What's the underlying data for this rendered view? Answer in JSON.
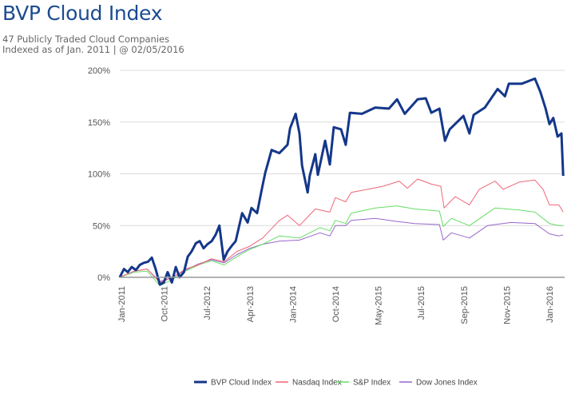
{
  "header": {
    "title": "BVP Cloud Index",
    "subtitle_line1": "47 Publicly Traded Cloud Companies",
    "subtitle_line2": "Indexed as of Jan. 2011 | @ 02/05/2016"
  },
  "chart_data": {
    "type": "line",
    "title": "",
    "xlabel": "",
    "ylabel": "",
    "ylim": [
      -20,
      200
    ],
    "y_ticks": [
      0,
      50,
      100,
      150,
      200
    ],
    "y_tick_labels": [
      "0%",
      "50%",
      "100%",
      "150%",
      "200%"
    ],
    "x_tick_labels": [
      "Jan-2011",
      "Oct-2011",
      "Jul-2012",
      "Apr-2013",
      "Jan-2014",
      "Oct-2014",
      "May-2015",
      "Jul-2015",
      "Sep-2015",
      "Nov-2015",
      "Jan-2016"
    ],
    "x_unit_note": "x given in tick-label positions (0 = Jan-2011 ... 10 = Jan-2016)",
    "grid": true,
    "legend": "bottom",
    "series": [
      {
        "name": "BVP Cloud Index",
        "color": "#14378a",
        "points": [
          [
            -0.04,
            0
          ],
          [
            0.06,
            8
          ],
          [
            0.15,
            5
          ],
          [
            0.24,
            10
          ],
          [
            0.34,
            7
          ],
          [
            0.43,
            12
          ],
          [
            0.52,
            14
          ],
          [
            0.62,
            15
          ],
          [
            0.71,
            19
          ],
          [
            0.8,
            8
          ],
          [
            0.9,
            -7
          ],
          [
            0.99,
            -5
          ],
          [
            1.08,
            5
          ],
          [
            1.18,
            -5
          ],
          [
            1.27,
            10
          ],
          [
            1.36,
            0
          ],
          [
            1.46,
            5
          ],
          [
            1.55,
            20
          ],
          [
            1.64,
            25
          ],
          [
            1.74,
            33
          ],
          [
            1.83,
            35
          ],
          [
            1.92,
            28
          ],
          [
            2.01,
            32
          ],
          [
            2.11,
            35
          ],
          [
            2.2,
            41
          ],
          [
            2.29,
            50
          ],
          [
            2.39,
            17
          ],
          [
            2.48,
            25
          ],
          [
            2.57,
            30
          ],
          [
            2.67,
            35
          ],
          [
            2.82,
            62
          ],
          [
            2.95,
            53
          ],
          [
            3.04,
            67
          ],
          [
            3.17,
            62
          ],
          [
            3.28,
            85
          ],
          [
            3.36,
            101
          ],
          [
            3.51,
            123
          ],
          [
            3.69,
            120
          ],
          [
            3.88,
            128
          ],
          [
            3.94,
            144
          ],
          [
            4.07,
            158
          ],
          [
            4.16,
            139
          ],
          [
            4.22,
            108
          ],
          [
            4.35,
            82
          ],
          [
            4.4,
            98
          ],
          [
            4.53,
            119
          ],
          [
            4.59,
            99
          ],
          [
            4.76,
            132
          ],
          [
            4.87,
            109
          ],
          [
            4.96,
            145
          ],
          [
            5.13,
            143
          ],
          [
            5.24,
            128
          ],
          [
            5.34,
            159
          ],
          [
            5.62,
            158
          ],
          [
            5.93,
            164
          ],
          [
            6.25,
            163
          ],
          [
            6.44,
            172
          ],
          [
            6.62,
            158
          ],
          [
            6.92,
            172
          ],
          [
            7.11,
            173
          ],
          [
            7.24,
            159
          ],
          [
            7.43,
            163
          ],
          [
            7.56,
            132
          ],
          [
            7.67,
            143
          ],
          [
            7.99,
            156
          ],
          [
            8.13,
            139
          ],
          [
            8.23,
            157
          ],
          [
            8.49,
            164
          ],
          [
            8.79,
            182
          ],
          [
            8.96,
            175
          ],
          [
            9.05,
            187
          ],
          [
            9.35,
            187
          ],
          [
            9.66,
            192
          ],
          [
            9.79,
            179
          ],
          [
            9.91,
            163
          ],
          [
            10.0,
            148
          ],
          [
            10.09,
            154
          ],
          [
            10.19,
            136
          ],
          [
            10.28,
            139
          ],
          [
            10.32,
            98
          ]
        ]
      },
      {
        "name": "Nasdaq Index",
        "color": "#ee6677",
        "points": [
          [
            -0.04,
            0
          ],
          [
            0.3,
            6
          ],
          [
            0.6,
            8
          ],
          [
            0.9,
            -5
          ],
          [
            1.2,
            0
          ],
          [
            1.5,
            8
          ],
          [
            1.8,
            12
          ],
          [
            2.1,
            18
          ],
          [
            2.4,
            15
          ],
          [
            2.7,
            25
          ],
          [
            3.0,
            30
          ],
          [
            3.3,
            38
          ],
          [
            3.69,
            55
          ],
          [
            3.88,
            60
          ],
          [
            4.16,
            50
          ],
          [
            4.53,
            66
          ],
          [
            4.87,
            63
          ],
          [
            5.0,
            77
          ],
          [
            5.24,
            73
          ],
          [
            5.37,
            82
          ],
          [
            5.75,
            85
          ],
          [
            6.12,
            88
          ],
          [
            6.49,
            93
          ],
          [
            6.68,
            86
          ],
          [
            6.92,
            95
          ],
          [
            7.24,
            90
          ],
          [
            7.46,
            88
          ],
          [
            7.54,
            67
          ],
          [
            7.8,
            78
          ],
          [
            8.13,
            70
          ],
          [
            8.36,
            85
          ],
          [
            8.73,
            93
          ],
          [
            8.92,
            85
          ],
          [
            9.29,
            92
          ],
          [
            9.66,
            94
          ],
          [
            9.85,
            85
          ],
          [
            10.0,
            70
          ],
          [
            10.22,
            70
          ],
          [
            10.32,
            63
          ]
        ]
      },
      {
        "name": "S&P Index",
        "color": "#66dd66",
        "points": [
          [
            -0.04,
            0
          ],
          [
            0.3,
            5
          ],
          [
            0.6,
            6
          ],
          [
            0.9,
            -8
          ],
          [
            1.2,
            -2
          ],
          [
            1.5,
            6
          ],
          [
            1.8,
            12
          ],
          [
            2.1,
            16
          ],
          [
            2.4,
            12
          ],
          [
            2.7,
            20
          ],
          [
            3.0,
            27
          ],
          [
            3.3,
            32
          ],
          [
            3.69,
            40
          ],
          [
            4.16,
            38
          ],
          [
            4.64,
            48
          ],
          [
            4.87,
            45
          ],
          [
            5.0,
            55
          ],
          [
            5.24,
            52
          ],
          [
            5.37,
            62
          ],
          [
            5.93,
            67
          ],
          [
            6.44,
            69
          ],
          [
            6.85,
            66
          ],
          [
            7.43,
            64
          ],
          [
            7.52,
            49
          ],
          [
            7.71,
            57
          ],
          [
            8.13,
            50
          ],
          [
            8.73,
            67
          ],
          [
            9.29,
            65
          ],
          [
            9.66,
            63
          ],
          [
            10.0,
            52
          ],
          [
            10.22,
            50
          ],
          [
            10.32,
            50
          ]
        ]
      },
      {
        "name": "Dow Jones Index",
        "color": "#9966cc",
        "points": [
          [
            -0.04,
            0
          ],
          [
            0.3,
            6
          ],
          [
            0.6,
            8
          ],
          [
            0.9,
            -4
          ],
          [
            1.2,
            0
          ],
          [
            1.5,
            7
          ],
          [
            1.8,
            13
          ],
          [
            2.1,
            17
          ],
          [
            2.4,
            14
          ],
          [
            2.7,
            22
          ],
          [
            3.0,
            28
          ],
          [
            3.3,
            32
          ],
          [
            3.69,
            35
          ],
          [
            4.16,
            36
          ],
          [
            4.64,
            43
          ],
          [
            4.87,
            40
          ],
          [
            5.0,
            50
          ],
          [
            5.24,
            50
          ],
          [
            5.37,
            55
          ],
          [
            5.93,
            57
          ],
          [
            6.44,
            54
          ],
          [
            6.85,
            52
          ],
          [
            7.43,
            51
          ],
          [
            7.52,
            36
          ],
          [
            7.71,
            43
          ],
          [
            8.13,
            38
          ],
          [
            8.55,
            50
          ],
          [
            9.1,
            53
          ],
          [
            9.66,
            52
          ],
          [
            10.0,
            42
          ],
          [
            10.22,
            40
          ],
          [
            10.32,
            41
          ]
        ]
      }
    ]
  }
}
